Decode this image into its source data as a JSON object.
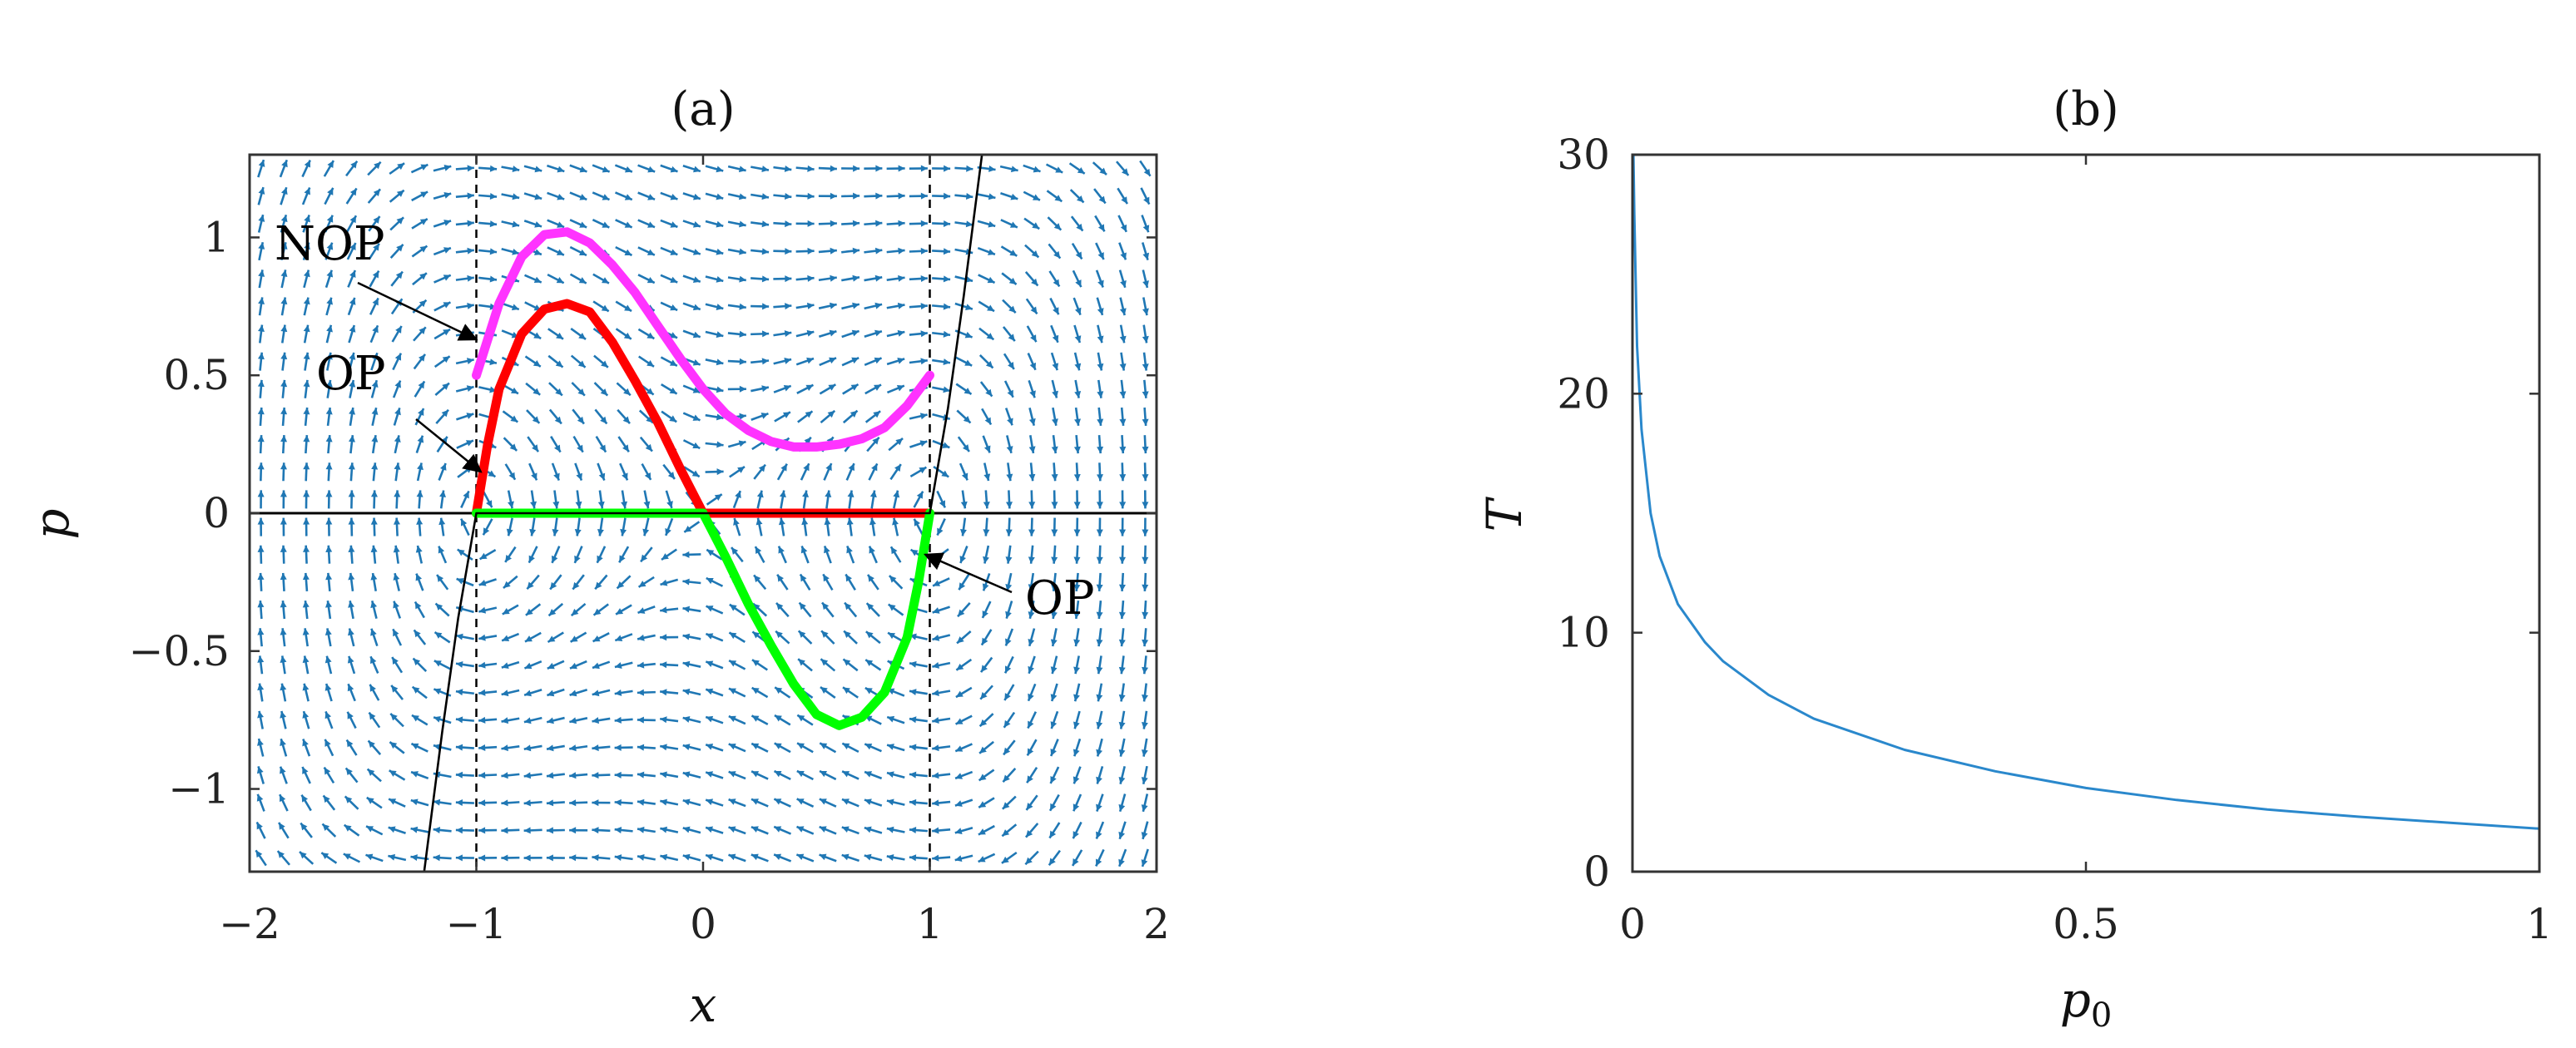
{
  "chart_data": [
    {
      "panel": "(a)",
      "type": "line",
      "title": "(a)",
      "xlabel": "x",
      "ylabel": "p",
      "xlim": [
        -2,
        2
      ],
      "ylim": [
        -1.3,
        1.3
      ],
      "xticks": [
        -2,
        -1,
        0,
        1,
        2
      ],
      "xtick_labels": [
        "−2",
        "−1",
        "0",
        "1",
        "2"
      ],
      "yticks": [
        -1,
        -0.5,
        0,
        0.5,
        1
      ],
      "ytick_labels": [
        "−1",
        "−0.5",
        "0",
        "0.5",
        "1"
      ],
      "vector_field": {
        "description_color": "#1f77b4",
        "grid_x_count": 40,
        "grid_y_count": 26
      },
      "reference_lines": [
        {
          "kind": "vertical-dashed",
          "x": -1
        },
        {
          "kind": "vertical-dashed",
          "x": 1
        },
        {
          "kind": "horizontal-solid",
          "y": 0
        }
      ],
      "series": [
        {
          "color": "#ff33ff",
          "x": [
            -1.0,
            -0.9,
            -0.8,
            -0.7,
            -0.6,
            -0.5,
            -0.4,
            -0.3,
            -0.2,
            -0.1,
            0.0,
            0.1,
            0.2,
            0.3,
            0.4,
            0.5,
            0.6,
            0.7,
            0.8,
            0.9,
            1.0
          ],
          "y": [
            0.5,
            0.76,
            0.93,
            1.01,
            1.02,
            0.98,
            0.9,
            0.8,
            0.68,
            0.56,
            0.45,
            0.36,
            0.3,
            0.26,
            0.24,
            0.24,
            0.25,
            0.27,
            0.31,
            0.39,
            0.5
          ]
        },
        {
          "color": "#ff0000",
          "x": [
            -1.0,
            -0.95,
            -0.9,
            -0.8,
            -0.7,
            -0.6,
            -0.5,
            -0.4,
            -0.3,
            -0.2,
            -0.1,
            0.0,
            0.2,
            0.4,
            0.6,
            0.8,
            1.0
          ],
          "y": [
            0.0,
            0.25,
            0.45,
            0.65,
            0.74,
            0.76,
            0.73,
            0.62,
            0.48,
            0.33,
            0.16,
            0.0,
            0.0,
            0.0,
            0.0,
            0.0,
            0.0
          ]
        },
        {
          "color": "#00ff00",
          "x": [
            -1.0,
            -0.8,
            -0.6,
            -0.4,
            -0.2,
            0.0,
            0.1,
            0.2,
            0.3,
            0.4,
            0.5,
            0.6,
            0.7,
            0.8,
            0.9,
            0.95,
            1.0
          ],
          "y": [
            0.0,
            0.0,
            0.0,
            0.0,
            0.0,
            0.0,
            -0.16,
            -0.33,
            -0.48,
            -0.62,
            -0.73,
            -0.77,
            -0.74,
            -0.65,
            -0.45,
            -0.25,
            0.0
          ]
        },
        {
          "color": "#000000",
          "x": [
            -1.23,
            -1.15,
            -1.08,
            -1.0,
            -0.9,
            -0.8,
            -0.7,
            -0.6,
            -0.5,
            -0.4,
            -0.3,
            -0.2,
            -0.1,
            0.0,
            0.1,
            0.2,
            0.3,
            0.4,
            0.5,
            0.6,
            0.7,
            0.8,
            0.9,
            1.0,
            1.08,
            1.15,
            1.23
          ],
          "y": [
            -1.3,
            -0.79,
            -0.38,
            0.0,
            0.0,
            0.0,
            0.0,
            0.0,
            0.0,
            0.0,
            0.0,
            0.0,
            0.0,
            0.0,
            0.0,
            0.0,
            0.0,
            0.0,
            0.0,
            0.0,
            0.0,
            0.0,
            0.0,
            0.0,
            0.38,
            0.79,
            1.3
          ]
        }
      ],
      "annotations": [
        {
          "text": "NOP",
          "target_x": -1.0,
          "target_y": 0.63
        },
        {
          "text": "OP",
          "target_x": -0.98,
          "target_y": 0.15
        },
        {
          "text": "OP",
          "target_x": 0.98,
          "target_y": -0.15
        }
      ]
    },
    {
      "panel": "(b)",
      "type": "line",
      "title": "(b)",
      "xlabel": "p0",
      "xlabel_main": "p",
      "xlabel_sub": "0",
      "ylabel": "T",
      "xlim": [
        0,
        1
      ],
      "ylim": [
        0,
        30
      ],
      "xticks": [
        0,
        0.5,
        1
      ],
      "xtick_labels": [
        "0",
        "0.5",
        "1"
      ],
      "yticks": [
        0,
        10,
        20,
        30
      ],
      "ytick_labels": [
        "0",
        "10",
        "20",
        "30"
      ],
      "series": [
        {
          "color": "#2a88cc",
          "x": [
            0.001,
            0.002,
            0.005,
            0.01,
            0.02,
            0.03,
            0.05,
            0.08,
            0.1,
            0.15,
            0.2,
            0.3,
            0.4,
            0.5,
            0.6,
            0.7,
            0.8,
            0.9,
            1.0
          ],
          "y": [
            30,
            27.5,
            22.0,
            18.5,
            15.0,
            13.2,
            11.2,
            9.6,
            8.8,
            7.4,
            6.4,
            5.1,
            4.2,
            3.5,
            3.0,
            2.6,
            2.3,
            2.05,
            1.8
          ]
        }
      ]
    }
  ]
}
